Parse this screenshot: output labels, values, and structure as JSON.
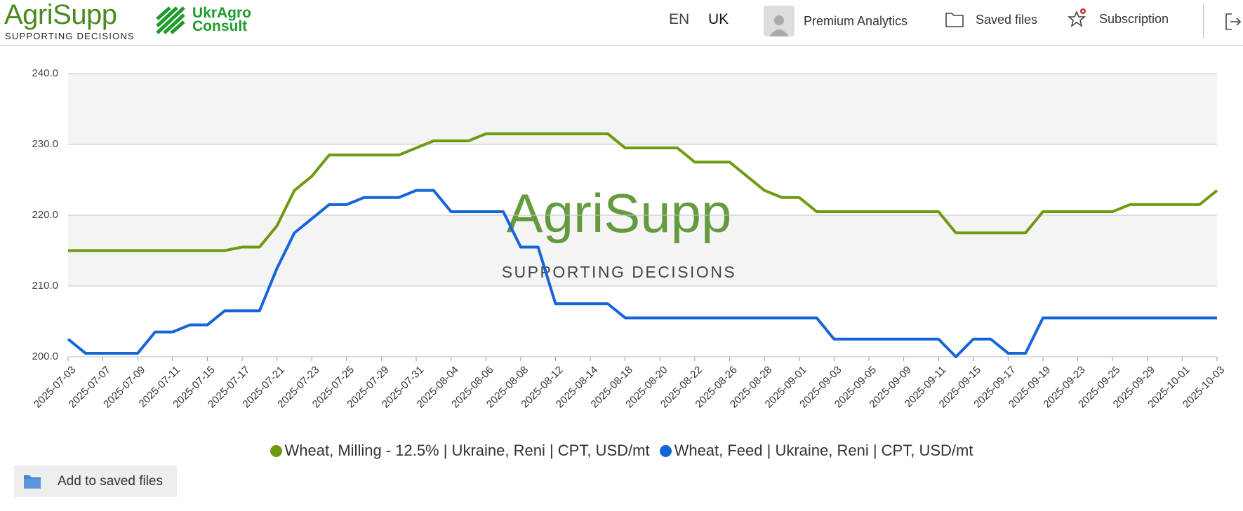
{
  "header": {
    "logo": "AgriSupp",
    "tagline": "SUPPORTING DECISIONS",
    "partner_lines": [
      "UkrAgro",
      "Consult"
    ],
    "languages": [
      "EN",
      "UK"
    ],
    "nav": [
      "Premium Analytics",
      "Saved files",
      "Subscription"
    ]
  },
  "chart_data": {
    "type": "line",
    "categories": [
      "2025-07-03",
      null,
      "2025-07-07",
      null,
      "2025-07-09",
      null,
      "2025-07-11",
      null,
      "2025-07-15",
      null,
      "2025-07-17",
      null,
      "2025-07-21",
      null,
      "2025-07-23",
      null,
      "2025-07-25",
      null,
      "2025-07-29",
      null,
      "2025-07-31",
      null,
      "2025-08-04",
      null,
      "2025-08-06",
      null,
      "2025-08-08",
      null,
      "2025-08-12",
      null,
      "2025-08-14",
      null,
      "2025-08-18",
      null,
      "2025-08-20",
      null,
      "2025-08-22",
      null,
      "2025-08-26",
      null,
      "2025-08-28",
      null,
      "2025-09-01",
      null,
      "2025-09-03",
      null,
      "2025-09-05",
      null,
      "2025-09-09",
      null,
      "2025-09-11",
      null,
      "2025-09-15",
      null,
      "2025-09-17",
      null,
      "2025-09-19",
      null,
      "2025-09-23",
      null,
      "2025-09-25",
      null,
      "2025-09-29",
      null,
      "2025-10-01",
      null,
      "2025-10-03"
    ],
    "series": [
      {
        "name": "Wheat, Milling - 12.5% | Ukraine, Reni | CPT, USD/mt",
        "color": "#6d9a0f",
        "values": [
          215,
          215,
          215,
          215,
          215,
          215,
          215,
          215,
          215,
          215,
          215.5,
          215.5,
          218.5,
          223.5,
          225.5,
          228.5,
          228.5,
          228.5,
          228.5,
          228.5,
          229.5,
          230.5,
          230.5,
          230.5,
          231.5,
          231.5,
          231.5,
          231.5,
          231.5,
          231.5,
          231.5,
          231.5,
          229.5,
          229.5,
          229.5,
          229.5,
          227.5,
          227.5,
          227.5,
          225.5,
          223.5,
          222.5,
          222.5,
          220.5,
          220.5,
          220.5,
          220.5,
          220.5,
          220.5,
          220.5,
          220.5,
          217.5,
          217.5,
          217.5,
          217.5,
          217.5,
          220.5,
          220.5,
          220.5,
          220.5,
          220.5,
          221.5,
          221.5,
          221.5,
          221.5,
          221.5,
          223.5
        ]
      },
      {
        "name": "Wheat, Feed | Ukraine, Reni | CPT, USD/mt",
        "color": "#1565d8",
        "values": [
          202.5,
          200.5,
          200.5,
          200.5,
          200.5,
          203.5,
          203.5,
          204.5,
          204.5,
          206.5,
          206.5,
          206.5,
          212.5,
          217.5,
          219.5,
          221.5,
          221.5,
          222.5,
          222.5,
          222.5,
          223.5,
          223.5,
          220.5,
          220.5,
          220.5,
          220.5,
          215.5,
          215.5,
          207.5,
          207.5,
          207.5,
          207.5,
          205.5,
          205.5,
          205.5,
          205.5,
          205.5,
          205.5,
          205.5,
          205.5,
          205.5,
          205.5,
          205.5,
          205.5,
          202.5,
          202.5,
          202.5,
          202.5,
          202.5,
          202.5,
          202.5,
          200,
          202.5,
          202.5,
          200.5,
          200.5,
          205.5,
          205.5,
          205.5,
          205.5,
          205.5,
          205.5,
          205.5,
          205.5,
          205.5,
          205.5,
          205.5
        ]
      }
    ],
    "ylim": [
      200,
      240
    ],
    "yticks": [
      {
        "value": 200,
        "label": "200.0"
      },
      {
        "value": 210,
        "label": "210.0"
      },
      {
        "value": 220,
        "label": "220.0"
      },
      {
        "value": 230,
        "label": "230.0"
      },
      {
        "value": 240,
        "label": "240.0"
      }
    ],
    "grid": true
  },
  "button": "Add to saved files"
}
